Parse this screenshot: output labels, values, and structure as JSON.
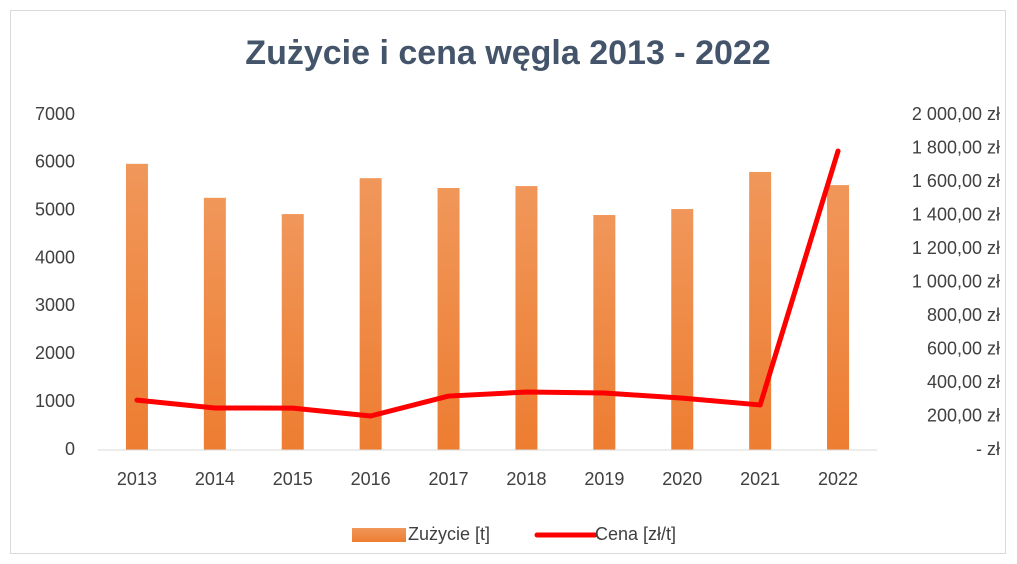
{
  "chart_data": {
    "type": "bar",
    "title": "Zużycie i cena węgla 2013 - 2022",
    "categories": [
      "2013",
      "2014",
      "2015",
      "2016",
      "2017",
      "2018",
      "2019",
      "2020",
      "2021",
      "2022"
    ],
    "series": [
      {
        "name": "Zużycie [t]",
        "type": "bar",
        "color": "#ed7d31",
        "values": [
          5980,
          5270,
          4930,
          5680,
          5475,
          5515,
          4910,
          5035,
          5810,
          5535
        ]
      },
      {
        "name": "Cena [zł/t]",
        "type": "line",
        "axis": "y2",
        "color": "#ff0000",
        "values": [
          298,
          251,
          250,
          203,
          322,
          346,
          340,
          310,
          269,
          1785
        ]
      }
    ],
    "ylim": [
      0,
      7000
    ],
    "yticks": [
      0,
      1000,
      2000,
      3000,
      4000,
      5000,
      6000,
      7000
    ],
    "y2lim": [
      0,
      2000
    ],
    "y2ticks": [
      {
        "value": 0,
        "label": "-   zł"
      },
      {
        "value": 200,
        "label": "200,00 zł"
      },
      {
        "value": 400,
        "label": "400,00 zł"
      },
      {
        "value": 600,
        "label": "600,00 zł"
      },
      {
        "value": 800,
        "label": "800,00 zł"
      },
      {
        "value": 1000,
        "label": "1 000,00 zł"
      },
      {
        "value": 1200,
        "label": "1 200,00 zł"
      },
      {
        "value": 1400,
        "label": "1 400,00 zł"
      },
      {
        "value": 1600,
        "label": "1 600,00 zł"
      },
      {
        "value": 1800,
        "label": "1 800,00 zł"
      },
      {
        "value": 2000,
        "label": "2 000,00 zł"
      }
    ],
    "grid": false,
    "legend": "bottom"
  }
}
